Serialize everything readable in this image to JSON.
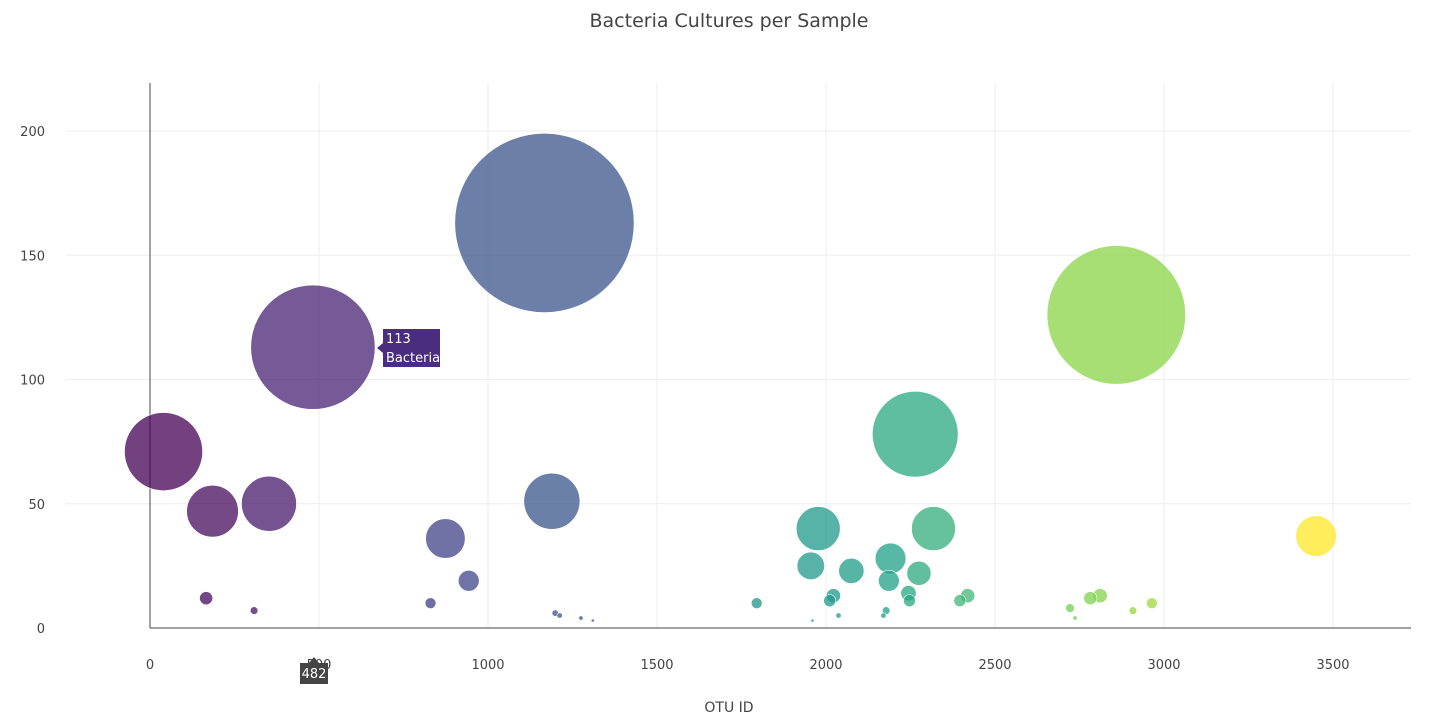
{
  "chart_data": {
    "type": "scatter",
    "title": "Bacteria Cultures per Sample",
    "xlabel": "OTU ID",
    "ylabel": "",
    "xlim": [
      -250,
      3720
    ],
    "ylim": [
      0,
      200
    ],
    "x_ticks": [
      0,
      500,
      1000,
      1500,
      2000,
      2500,
      3000,
      3500
    ],
    "y_ticks": [
      0,
      50,
      100,
      150,
      200
    ],
    "grid": true,
    "legend": "none",
    "colorscale": "viridis",
    "marker_size": "sample value",
    "series": [
      {
        "x": [
          40,
          185,
          352,
          482,
          830,
          874,
          943,
          1167,
          1189,
          1795,
          1960,
          1977,
          1955,
          2011,
          2022,
          2037,
          2075,
          2170,
          2178,
          2186,
          2191,
          2244,
          2247,
          2264,
          2275,
          2318,
          2396,
          2419,
          2722,
          2737,
          2782,
          2811,
          2908,
          2964,
          3450,
          2859,
          166,
          308,
          1199,
          1212,
          1275,
          1310
        ],
        "y": [
          71,
          47,
          50,
          113,
          10,
          36,
          19,
          163,
          51,
          10,
          3,
          40,
          25,
          11,
          13,
          5,
          23,
          5,
          7,
          19,
          28,
          14,
          11,
          78,
          22,
          40,
          11,
          13,
          8,
          4,
          12,
          13,
          7,
          10,
          37,
          126,
          12,
          7,
          6,
          5,
          4,
          3
        ]
      }
    ],
    "hover": {
      "point": {
        "value": "113",
        "label": "Bacteria"
      },
      "x_badge": "482"
    }
  }
}
